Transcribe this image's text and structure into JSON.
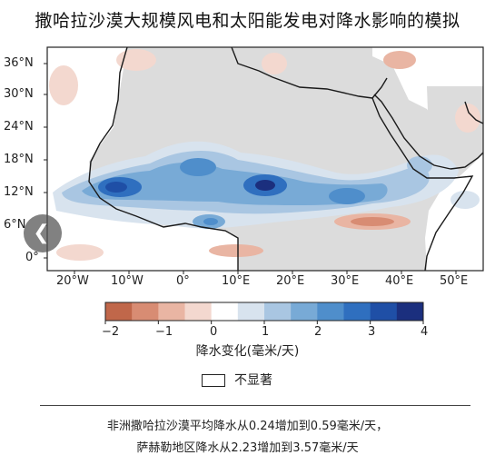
{
  "title": "撒哈拉沙漠大规模风电和太阳能发电对降水影响的模拟",
  "map": {
    "lat_labels": [
      "36°N",
      "30°N",
      "24°N",
      "18°N",
      "12°N",
      "6°N",
      "0°"
    ],
    "lon_labels": [
      "20°W",
      "10°W",
      "0°",
      "10°E",
      "20°E",
      "30°E",
      "40°E",
      "50°E"
    ],
    "lon_range": [
      -25,
      55
    ],
    "lat_range": [
      -3,
      39
    ],
    "colors": {
      "land_background": "#dcdcdc",
      "ocean": "#ffffff",
      "coastline": "#1a1a1a"
    }
  },
  "colorbar": {
    "tick_labels": [
      "−2",
      "−1",
      "0",
      "1",
      "2",
      "3",
      "4"
    ],
    "range": [
      -2,
      4
    ],
    "title": "降水变化(毫米/天)",
    "colors": [
      "#c0674a",
      "#d88c73",
      "#e9b5a3",
      "#f3d8cf",
      "#ffffff",
      "#d8e3ee",
      "#a9c6e2",
      "#78aad6",
      "#4f8ecb",
      "#2f6fbf",
      "#1f4fa6",
      "#1b2f7e"
    ]
  },
  "legend": {
    "not_significant_label": "不显著"
  },
  "notes": {
    "line1": "非洲撒哈拉沙漠平均降水从0.24增加到0.59毫米/天，",
    "line2": "萨赫勒地区降水从2.23增加到3.57毫米/天"
  },
  "nav": {
    "arrow_icon": "chevron-left-icon",
    "glyph": "❮"
  }
}
